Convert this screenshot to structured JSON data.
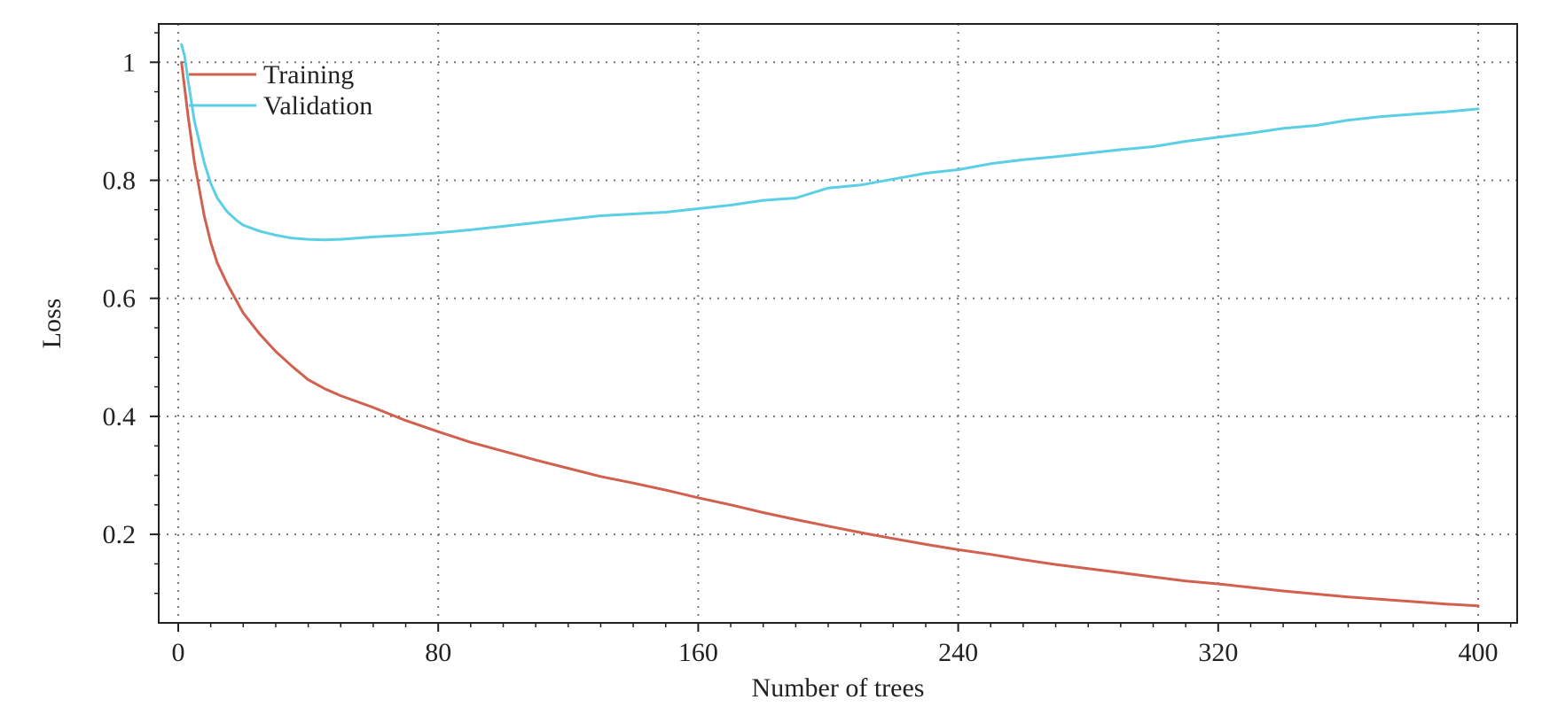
{
  "chart_data": {
    "type": "line",
    "xlabel": "Number of trees",
    "ylabel": "Loss",
    "xlim": [
      -6,
      412
    ],
    "ylim": [
      0.05,
      1.065
    ],
    "x_ticks": [
      0,
      80,
      160,
      240,
      320,
      400
    ],
    "x_tick_labels": [
      "0",
      "80",
      "160",
      "240",
      "320",
      "400"
    ],
    "y_ticks": [
      0.2,
      0.4,
      0.6,
      0.8,
      1
    ],
    "y_tick_labels": [
      "0.2",
      "0.4",
      "0.6",
      "0.8",
      "1"
    ],
    "grid": true,
    "legend_position": "top-left",
    "series": [
      {
        "name": "Training",
        "color": "#d2604f",
        "x": [
          1,
          3,
          5,
          8,
          10,
          12,
          15,
          18,
          20,
          25,
          30,
          35,
          40,
          45,
          50,
          60,
          70,
          80,
          90,
          100,
          110,
          120,
          130,
          140,
          150,
          160,
          170,
          180,
          190,
          200,
          210,
          220,
          230,
          240,
          250,
          260,
          270,
          280,
          290,
          300,
          310,
          320,
          330,
          340,
          350,
          360,
          370,
          380,
          390,
          400
        ],
        "y": [
          1.0,
          0.91,
          0.83,
          0.74,
          0.695,
          0.66,
          0.625,
          0.595,
          0.575,
          0.54,
          0.51,
          0.485,
          0.462,
          0.447,
          0.435,
          0.415,
          0.393,
          0.374,
          0.356,
          0.341,
          0.326,
          0.312,
          0.298,
          0.287,
          0.275,
          0.262,
          0.25,
          0.237,
          0.225,
          0.214,
          0.203,
          0.193,
          0.183,
          0.174,
          0.166,
          0.157,
          0.149,
          0.142,
          0.135,
          0.128,
          0.121,
          0.116,
          0.11,
          0.104,
          0.099,
          0.094,
          0.09,
          0.086,
          0.082,
          0.079
        ]
      },
      {
        "name": "Validation",
        "color": "#5bcfe3",
        "x": [
          1,
          2,
          3,
          5,
          8,
          10,
          12,
          15,
          18,
          20,
          25,
          30,
          35,
          40,
          45,
          50,
          60,
          70,
          80,
          90,
          100,
          110,
          120,
          130,
          140,
          150,
          160,
          170,
          180,
          190,
          200,
          210,
          220,
          230,
          240,
          250,
          260,
          270,
          280,
          290,
          300,
          310,
          320,
          330,
          340,
          350,
          360,
          370,
          380,
          390,
          400
        ],
        "y": [
          1.03,
          1.01,
          0.97,
          0.9,
          0.83,
          0.795,
          0.77,
          0.747,
          0.732,
          0.724,
          0.714,
          0.707,
          0.702,
          0.7,
          0.699,
          0.7,
          0.704,
          0.707,
          0.711,
          0.716,
          0.722,
          0.728,
          0.734,
          0.74,
          0.743,
          0.746,
          0.752,
          0.758,
          0.766,
          0.77,
          0.787,
          0.792,
          0.802,
          0.812,
          0.818,
          0.828,
          0.835,
          0.84,
          0.846,
          0.852,
          0.857,
          0.866,
          0.873,
          0.88,
          0.888,
          0.893,
          0.902,
          0.908,
          0.912,
          0.916,
          0.921
        ]
      }
    ]
  }
}
